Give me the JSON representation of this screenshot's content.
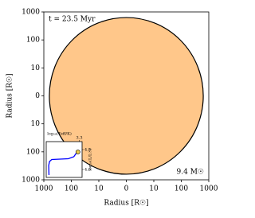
{
  "chart_data": [
    {
      "type": "radius",
      "xlabel": "Radius [R☉]",
      "ylabel": "Radius [R☉]",
      "time_label": "t = 23.5 Myr",
      "mass_label": "9.4 M☉",
      "radius": 630,
      "color": "#ffc78a",
      "scale": "symlog",
      "linthresh": 10,
      "xlim": [
        -1000,
        1000
      ],
      "ylim": [
        -1000,
        1000
      ],
      "xticks": [
        {
          "value": -1000,
          "label": "1000"
        },
        {
          "value": -100,
          "label": "100"
        },
        {
          "value": -10,
          "label": "10"
        },
        0,
        10,
        100,
        1000
      ],
      "yticks": [
        {
          "value": -1000,
          "label": "1000"
        },
        {
          "value": -100,
          "label": "100"
        },
        {
          "value": -10,
          "label": "10"
        },
        0,
        10,
        100,
        1000
      ]
    },
    {
      "type": "line",
      "xlabel": "log₁₀(Teff/K)",
      "ylabel": "log₁₀(L/L☉)",
      "xlim": [
        4.5,
        3.2
      ],
      "ylim": [
        3.8,
        4.7
      ],
      "xticks": [
        3.3
      ],
      "yticks": [
        {
          "value": 4,
          "label": "4.0"
        },
        4.5
      ],
      "x": [
        4.4,
        4.41,
        4.38,
        4.3,
        4.0,
        3.7,
        3.5,
        3.4,
        3.35
      ],
      "series": [
        {
          "color": "#0000ff",
          "values": [
            3.86,
            4.1,
            4.2,
            4.25,
            4.26,
            4.27,
            4.32,
            4.42,
            4.44
          ]
        }
      ],
      "marker": {
        "x": 3.35,
        "y": 4.44,
        "color": "#e8c84a"
      }
    }
  ]
}
